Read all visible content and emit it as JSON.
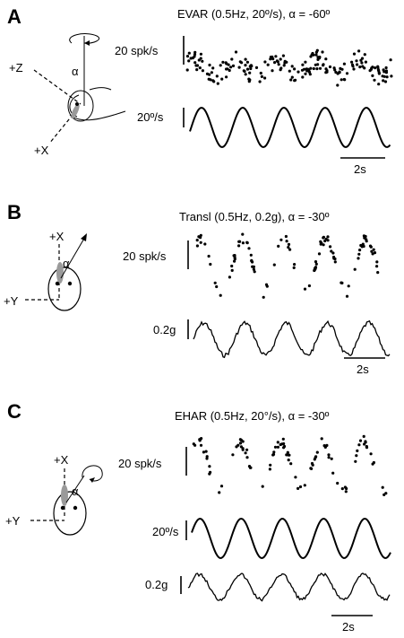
{
  "panels": [
    {
      "id": "A",
      "label": "A",
      "title": "EVAR (0.5Hz, 20º/s), α = -60º",
      "rate_scale": "20 spk/s",
      "stimulus_traces": [
        {
          "scale": "20º/s",
          "kind": "velocity"
        }
      ],
      "time_scale": "2s",
      "diagram_labels": {
        "axis1": "+Z",
        "axis2": "+X",
        "angle": "α"
      }
    },
    {
      "id": "B",
      "label": "B",
      "title": "Transl (0.5Hz, 0.2g), α = -30º",
      "rate_scale": "20 spk/s",
      "stimulus_traces": [
        {
          "scale": "0.2g",
          "kind": "acceleration"
        }
      ],
      "time_scale": "2s",
      "diagram_labels": {
        "axis1": "+X",
        "axis2": "+Y",
        "angle": "α"
      }
    },
    {
      "id": "C",
      "label": "C",
      "title": "EHAR (0.5Hz, 20°/s), α = -30º",
      "rate_scale": "20 spk/s",
      "stimulus_traces": [
        {
          "scale": "20º/s",
          "kind": "velocity"
        },
        {
          "scale": "0.2g",
          "kind": "acceleration"
        }
      ],
      "time_scale": "2s",
      "diagram_labels": {
        "axis1": "+X",
        "axis2": "+Y",
        "angle": "α"
      }
    }
  ]
}
